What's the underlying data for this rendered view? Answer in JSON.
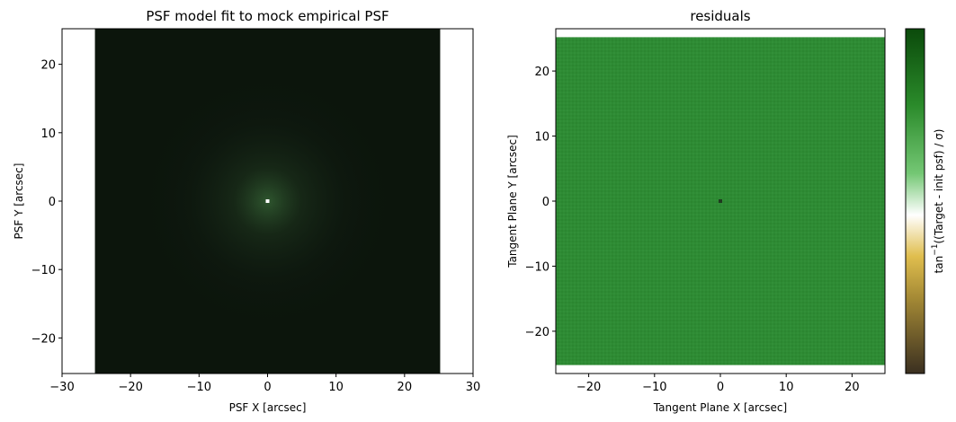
{
  "chart_data": [
    {
      "type": "heatmap",
      "title": "PSF model fit to mock empirical PSF",
      "xlabel": "PSF X [arcsec]",
      "ylabel": "PSF Y [arcsec]",
      "xlim": [
        -30,
        30
      ],
      "ylim": [
        -25.2,
        25.2
      ],
      "image_extent_x": [
        -25.2,
        25.2
      ],
      "image_extent_y": [
        -25.2,
        25.2
      ],
      "xticks": [
        -30,
        -20,
        -10,
        0,
        10,
        20,
        30
      ],
      "yticks": [
        -20,
        -10,
        0,
        10,
        20
      ],
      "xtick_labels": [
        "−30",
        "−20",
        "−10",
        "0",
        "10",
        "20",
        "30"
      ],
      "ytick_labels": [
        "−20",
        "−10",
        "0",
        "10",
        "20"
      ],
      "description_values": {
        "peak_location": [
          0,
          0
        ],
        "background_color": "#0c150c",
        "peak_color": "#ffffff"
      }
    },
    {
      "type": "heatmap",
      "title": "residuals",
      "xlabel": "Tangent Plane X [arcsec]",
      "ylabel": "Tangent Plane Y [arcsec]",
      "xlim": [
        -25,
        25
      ],
      "ylim": [
        -26.5,
        26.5
      ],
      "image_extent_x": [
        -25,
        25
      ],
      "image_extent_y": [
        -25.2,
        25.2
      ],
      "xticks": [
        -20,
        -10,
        0,
        10,
        20
      ],
      "yticks": [
        -20,
        -10,
        0,
        10,
        20
      ],
      "xtick_labels": [
        "−20",
        "−10",
        "0",
        "10",
        "20"
      ],
      "ytick_labels": [
        "−20",
        "−10",
        "0",
        "10",
        "20"
      ],
      "dominant_color": "#2e8b34",
      "center_pixel_color": "#1f3a1f",
      "colorbar": {
        "label_prefix": "tan",
        "label_superscript": "−1",
        "label_suffix": "((Target - init psf) / σ)",
        "colormap_stops": [
          {
            "pos": 0.0,
            "color": "#3a2f20"
          },
          {
            "pos": 0.22,
            "color": "#a58a35"
          },
          {
            "pos": 0.34,
            "color": "#e0be4e"
          },
          {
            "pos": 0.46,
            "color": "#ffffff"
          },
          {
            "pos": 0.58,
            "color": "#74c774"
          },
          {
            "pos": 0.78,
            "color": "#2a8a2a"
          },
          {
            "pos": 1.0,
            "color": "#0b4a0b"
          }
        ]
      }
    }
  ]
}
